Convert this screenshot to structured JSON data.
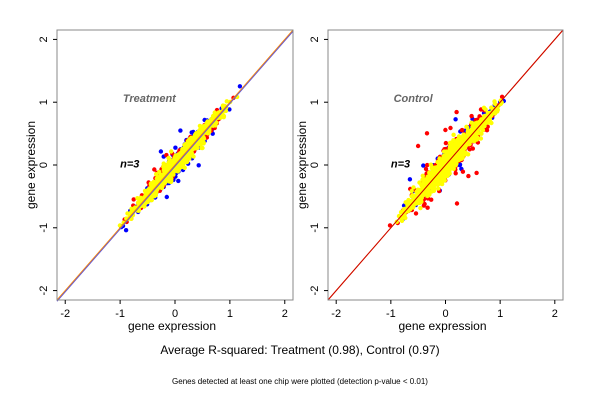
{
  "chart_data": [
    {
      "type": "scatter",
      "title": "Treatment",
      "annotation": "n=3",
      "xlabel": "gene expression",
      "ylabel": "gene expression",
      "xlim": [
        -2.15,
        2.15
      ],
      "ylim": [
        -2.15,
        2.15
      ],
      "xticks": [
        -2,
        -1,
        0,
        1,
        2
      ],
      "yticks": [
        -2,
        -1,
        0,
        1,
        2
      ],
      "grid": false,
      "reference_lines": [
        {
          "name": "identity",
          "slope": 1,
          "intercept": 0,
          "color": "#ff8c00"
        },
        {
          "name": "fit",
          "slope": 1,
          "intercept": -0.02,
          "color": "#6a5acd"
        }
      ],
      "series": [
        {
          "name": "replicate-blue",
          "color": "#0000ff",
          "x_range": [
            -1.1,
            1.25
          ],
          "spread": 0.09,
          "outlier_spread": 0.22
        },
        {
          "name": "replicate-red",
          "color": "#ff0000",
          "x_range": [
            -1.05,
            1.2
          ],
          "spread": 0.08,
          "outlier_spread": 0.2
        },
        {
          "name": "replicate-yellow",
          "color": "#ffff00",
          "x_range": [
            -1.1,
            1.2
          ],
          "spread": 0.07,
          "outlier_spread": 0.1
        }
      ]
    },
    {
      "type": "scatter",
      "title": "Control",
      "annotation": "n=3",
      "xlabel": "gene expression",
      "ylabel": "gene expression",
      "xlim": [
        -2.15,
        2.15
      ],
      "ylim": [
        -2.15,
        2.15
      ],
      "xticks": [
        -2,
        -1,
        0,
        1,
        2
      ],
      "yticks": [
        -2,
        -1,
        0,
        1,
        2
      ],
      "grid": false,
      "reference_lines": [
        {
          "name": "identity",
          "slope": 1,
          "intercept": 0,
          "color": "#ff8c00"
        },
        {
          "name": "fit",
          "slope": 1,
          "intercept": 0.0,
          "color": "#cc0000"
        }
      ],
      "series": [
        {
          "name": "replicate-blue",
          "color": "#0000ff",
          "x_range": [
            -1.1,
            1.25
          ],
          "spread": 0.1,
          "outlier_spread": 0.25
        },
        {
          "name": "replicate-red",
          "color": "#ff0000",
          "x_range": [
            -1.05,
            1.2
          ],
          "spread": 0.13,
          "outlier_spread": 0.38
        },
        {
          "name": "replicate-yellow",
          "color": "#ffff00",
          "x_range": [
            -1.1,
            1.2
          ],
          "spread": 0.09,
          "outlier_spread": 0.14
        }
      ]
    }
  ],
  "footer": {
    "summary": "Average R-squared: Treatment (0.98), Control (0.97)",
    "note": "Genes detected at least one chip were plotted (detection p-value < 0.01)"
  },
  "summary_stats": {
    "treatment_r_squared": 0.98,
    "control_r_squared": 0.97
  }
}
